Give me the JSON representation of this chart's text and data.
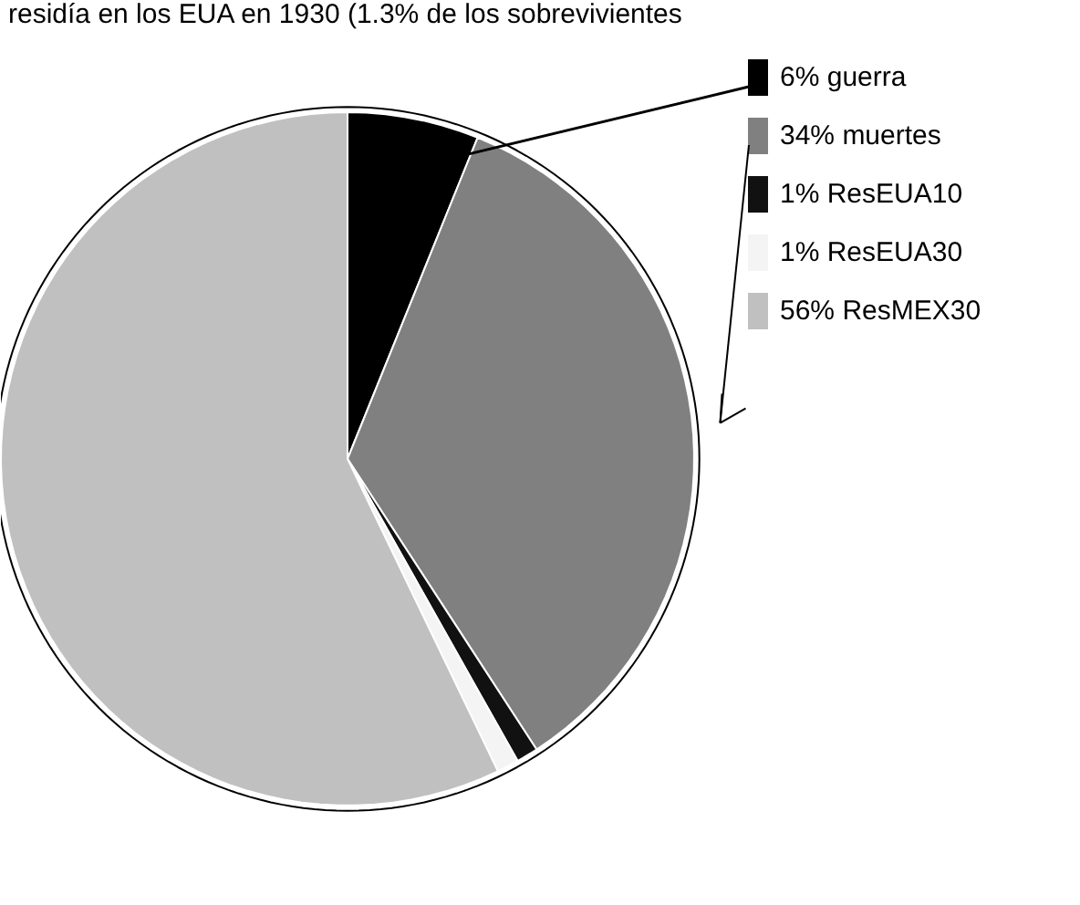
{
  "chart_data": {
    "type": "pie",
    "categories": [
      "6% guerra",
      "34% muertes",
      "1% ResEUA10",
      "1% ResEUA30",
      "56% ResMEX30"
    ],
    "values": [
      6,
      34,
      1,
      1,
      56
    ],
    "colors": [
      "#000000",
      "#808080",
      "#111111",
      "#f4f4f4",
      "#c0c0c0"
    ],
    "annotations": [
      "residía en los EUA en 1930 (1.3% de los sobrevivientes"
    ],
    "legend": "top right"
  }
}
